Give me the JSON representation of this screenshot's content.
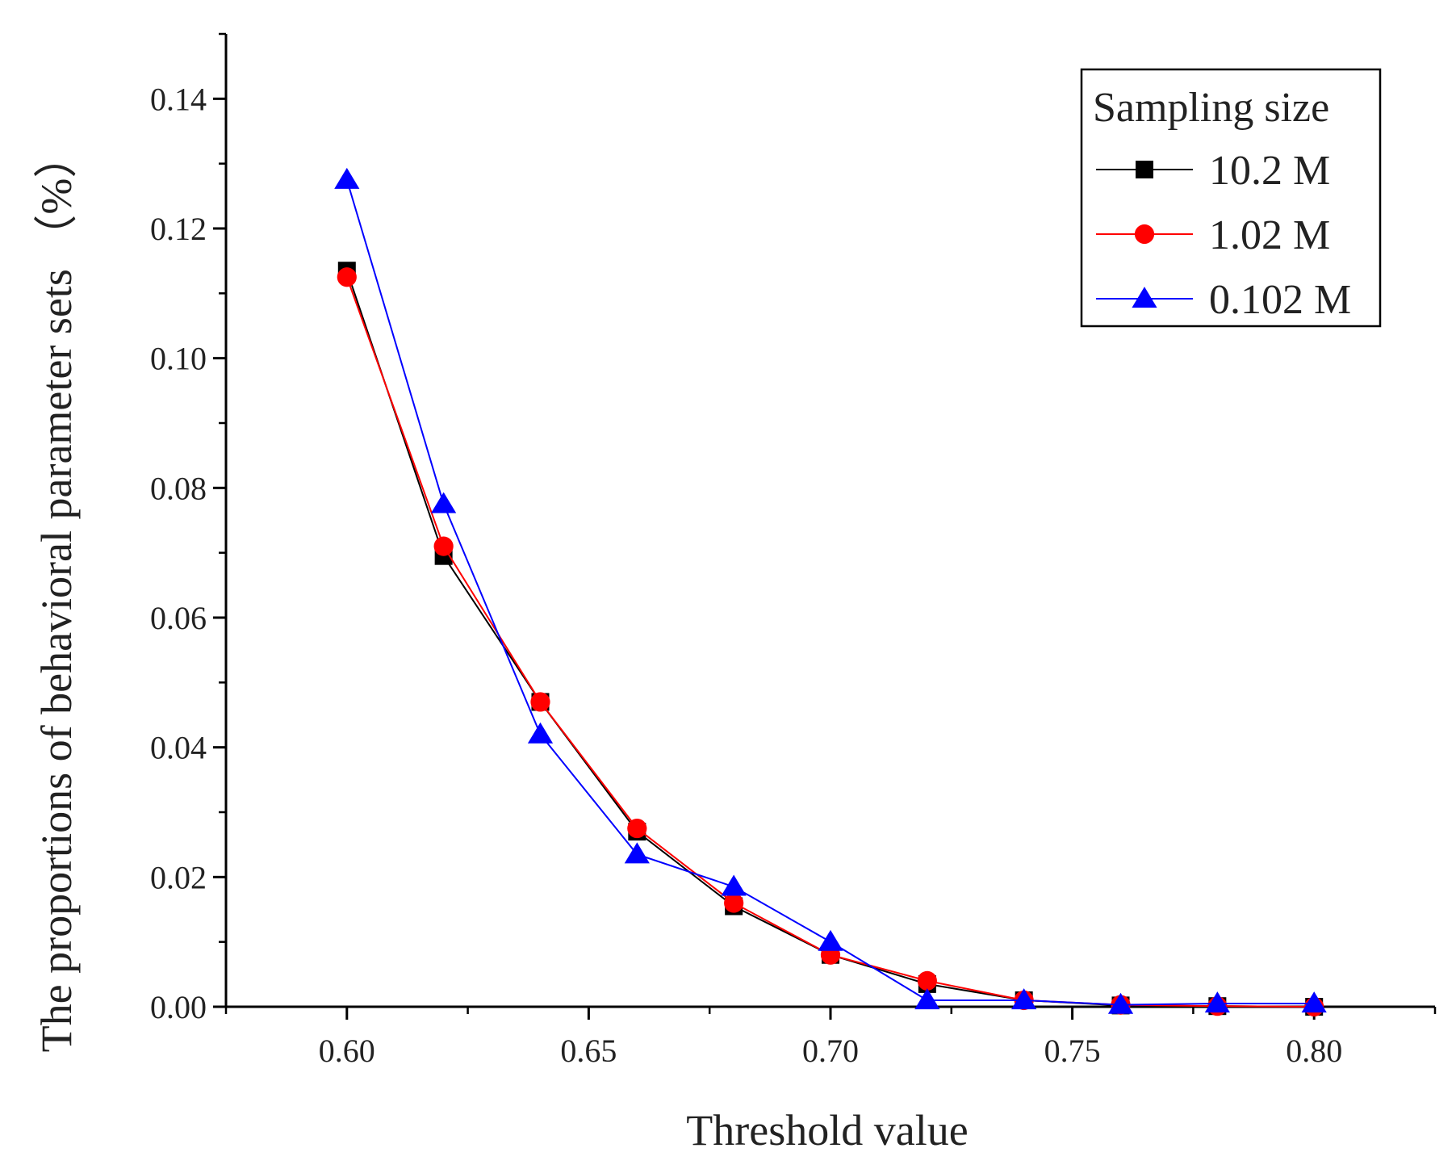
{
  "chart_data": {
    "type": "line",
    "title": "",
    "xlabel": "Threshold value",
    "ylabel": "The proportions of behavioral parameter sets （%）",
    "xlim": [
      0.575,
      0.825
    ],
    "ylim": [
      0.0,
      0.15
    ],
    "xticks": [
      0.6,
      0.65,
      0.7,
      0.75,
      0.8
    ],
    "xtick_labels": [
      "0.60",
      "0.65",
      "0.70",
      "0.75",
      "0.80"
    ],
    "yticks": [
      0.0,
      0.02,
      0.04,
      0.06,
      0.08,
      0.1,
      0.12,
      0.14
    ],
    "ytick_labels": [
      "0.00",
      "0.02",
      "0.04",
      "0.06",
      "0.08",
      "0.10",
      "0.12",
      "0.14"
    ],
    "grid": false,
    "legend": {
      "title": "Sampling size",
      "position": "top-right"
    },
    "x": [
      0.6,
      0.62,
      0.64,
      0.66,
      0.68,
      0.7,
      0.72,
      0.74,
      0.76,
      0.78,
      0.8
    ],
    "series": [
      {
        "name": "10.2 M",
        "color": "#000000",
        "marker": "square",
        "values": [
          0.1135,
          0.0695,
          0.047,
          0.027,
          0.0155,
          0.008,
          0.0035,
          0.001,
          0.0002,
          0.0001,
          0.0
        ]
      },
      {
        "name": "1.02 M",
        "color": "#ff0000",
        "marker": "circle",
        "values": [
          0.1125,
          0.071,
          0.047,
          0.0275,
          0.016,
          0.008,
          0.004,
          0.001,
          0.0003,
          0.0001,
          0.0
        ]
      },
      {
        "name": "0.102 M",
        "color": "#0000ff",
        "marker": "triangle",
        "values": [
          0.1275,
          0.0775,
          0.042,
          0.0235,
          0.0185,
          0.01,
          0.001,
          0.001,
          0.0003,
          0.0005,
          0.0005
        ]
      }
    ]
  }
}
